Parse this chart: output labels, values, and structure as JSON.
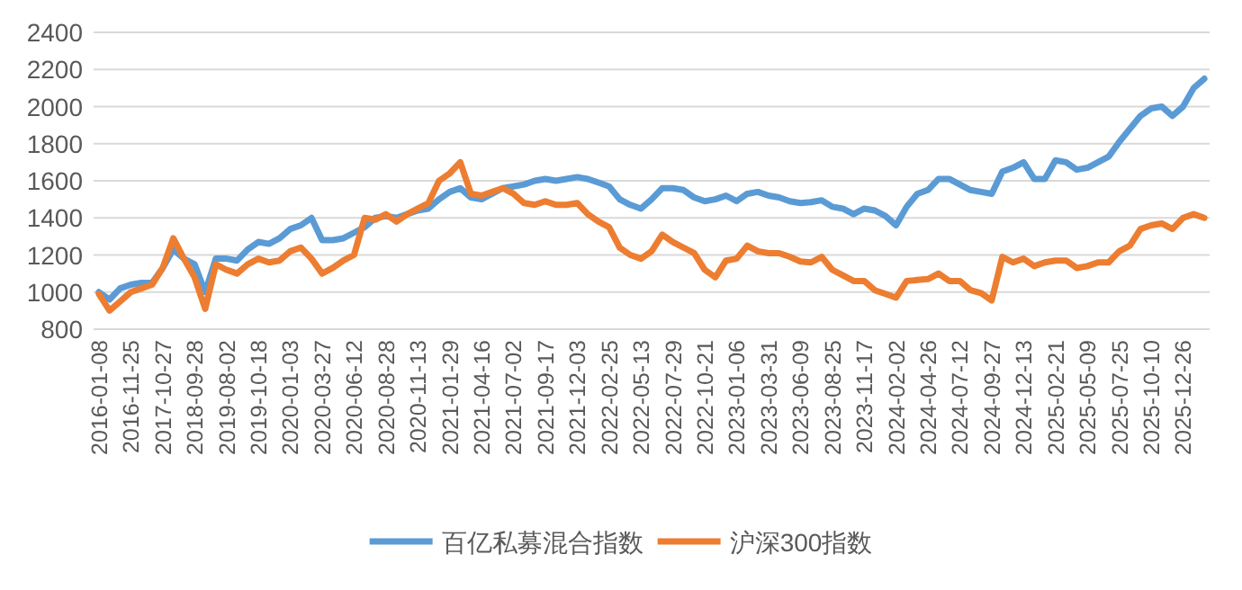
{
  "chart_data": {
    "type": "line",
    "categories": [
      "2016-01-08",
      null,
      null,
      "2016-11-25",
      null,
      null,
      "2017-10-27",
      null,
      null,
      "2018-09-28",
      null,
      null,
      "2019-08-02",
      null,
      null,
      "2019-10-18",
      null,
      null,
      "2020-01-03",
      null,
      null,
      "2020-03-27",
      null,
      null,
      "2020-06-12",
      null,
      null,
      "2020-08-28",
      null,
      null,
      "2020-11-13",
      null,
      null,
      "2021-01-29",
      null,
      null,
      "2021-04-16",
      null,
      null,
      "2021-07-02",
      null,
      null,
      "2021-09-17",
      null,
      null,
      "2021-12-03",
      null,
      null,
      "2022-02-25",
      null,
      null,
      "2022-05-13",
      null,
      null,
      "2022-07-29",
      null,
      null,
      "2022-10-21",
      null,
      null,
      "2023-01-06",
      null,
      null,
      "2023-03-31",
      null,
      null,
      "2023-06-09",
      null,
      null,
      "2023-08-25",
      null,
      null,
      "2023-11-17",
      null,
      null,
      "2024-02-02",
      null,
      null,
      "2024-04-26",
      null,
      null,
      "2024-07-12",
      null,
      null,
      "2024-09-27",
      null,
      null,
      "2024-12-13",
      null,
      null,
      "2025-02-21",
      null,
      null,
      "2025-05-09",
      null,
      null,
      "2025-07-25",
      null,
      null,
      "2025-10-10",
      null,
      null,
      "2025-12-26",
      null,
      null
    ],
    "series": [
      {
        "name": "百亿私募混合指数",
        "color": "#5b9bd5",
        "values": [
          1000,
          960,
          1020,
          1040,
          1050,
          1050,
          1130,
          1230,
          1180,
          1150,
          1000,
          1180,
          1180,
          1170,
          1230,
          1270,
          1260,
          1290,
          1340,
          1360,
          1400,
          1280,
          1280,
          1290,
          1320,
          1350,
          1400,
          1410,
          1400,
          1420,
          1440,
          1450,
          1500,
          1540,
          1560,
          1510,
          1500,
          1530,
          1560,
          1570,
          1580,
          1600,
          1610,
          1600,
          1610,
          1620,
          1610,
          1590,
          1570,
          1500,
          1470,
          1450,
          1500,
          1560,
          1560,
          1550,
          1510,
          1490,
          1500,
          1520,
          1490,
          1530,
          1540,
          1520,
          1510,
          1490,
          1480,
          1485,
          1495,
          1460,
          1450,
          1420,
          1450,
          1440,
          1410,
          1360,
          1460,
          1530,
          1550,
          1610,
          1610,
          1580,
          1550,
          1540,
          1530,
          1650,
          1670,
          1700,
          1610,
          1610,
          1710,
          1700,
          1660,
          1670,
          1700,
          1730,
          1810,
          1880,
          1950,
          1990,
          2000,
          1950,
          2000,
          2100,
          2150
        ]
      },
      {
        "name": "沪深300指数",
        "color": "#ed7d31",
        "values": [
          990,
          900,
          950,
          1000,
          1020,
          1040,
          1130,
          1290,
          1180,
          1080,
          910,
          1150,
          1120,
          1100,
          1150,
          1180,
          1160,
          1170,
          1220,
          1240,
          1180,
          1100,
          1130,
          1170,
          1200,
          1400,
          1390,
          1420,
          1380,
          1420,
          1450,
          1480,
          1600,
          1640,
          1700,
          1530,
          1520,
          1540,
          1560,
          1530,
          1480,
          1470,
          1490,
          1470,
          1470,
          1480,
          1420,
          1380,
          1350,
          1240,
          1200,
          1180,
          1220,
          1310,
          1270,
          1240,
          1210,
          1120,
          1080,
          1170,
          1180,
          1250,
          1220,
          1210,
          1210,
          1190,
          1165,
          1160,
          1190,
          1120,
          1090,
          1060,
          1060,
          1010,
          990,
          970,
          1060,
          1065,
          1070,
          1100,
          1060,
          1060,
          1010,
          995,
          955,
          1190,
          1160,
          1180,
          1140,
          1160,
          1170,
          1170,
          1130,
          1140,
          1160,
          1160,
          1220,
          1250,
          1340,
          1360,
          1370,
          1340,
          1400,
          1420,
          1400
        ]
      }
    ],
    "ylim": [
      800,
      2400
    ],
    "yticks": [
      800,
      1000,
      1200,
      1400,
      1600,
      1800,
      2000,
      2200,
      2400
    ],
    "grid": "y",
    "legend": "bottom",
    "line_style": "solid",
    "marker": "none"
  }
}
